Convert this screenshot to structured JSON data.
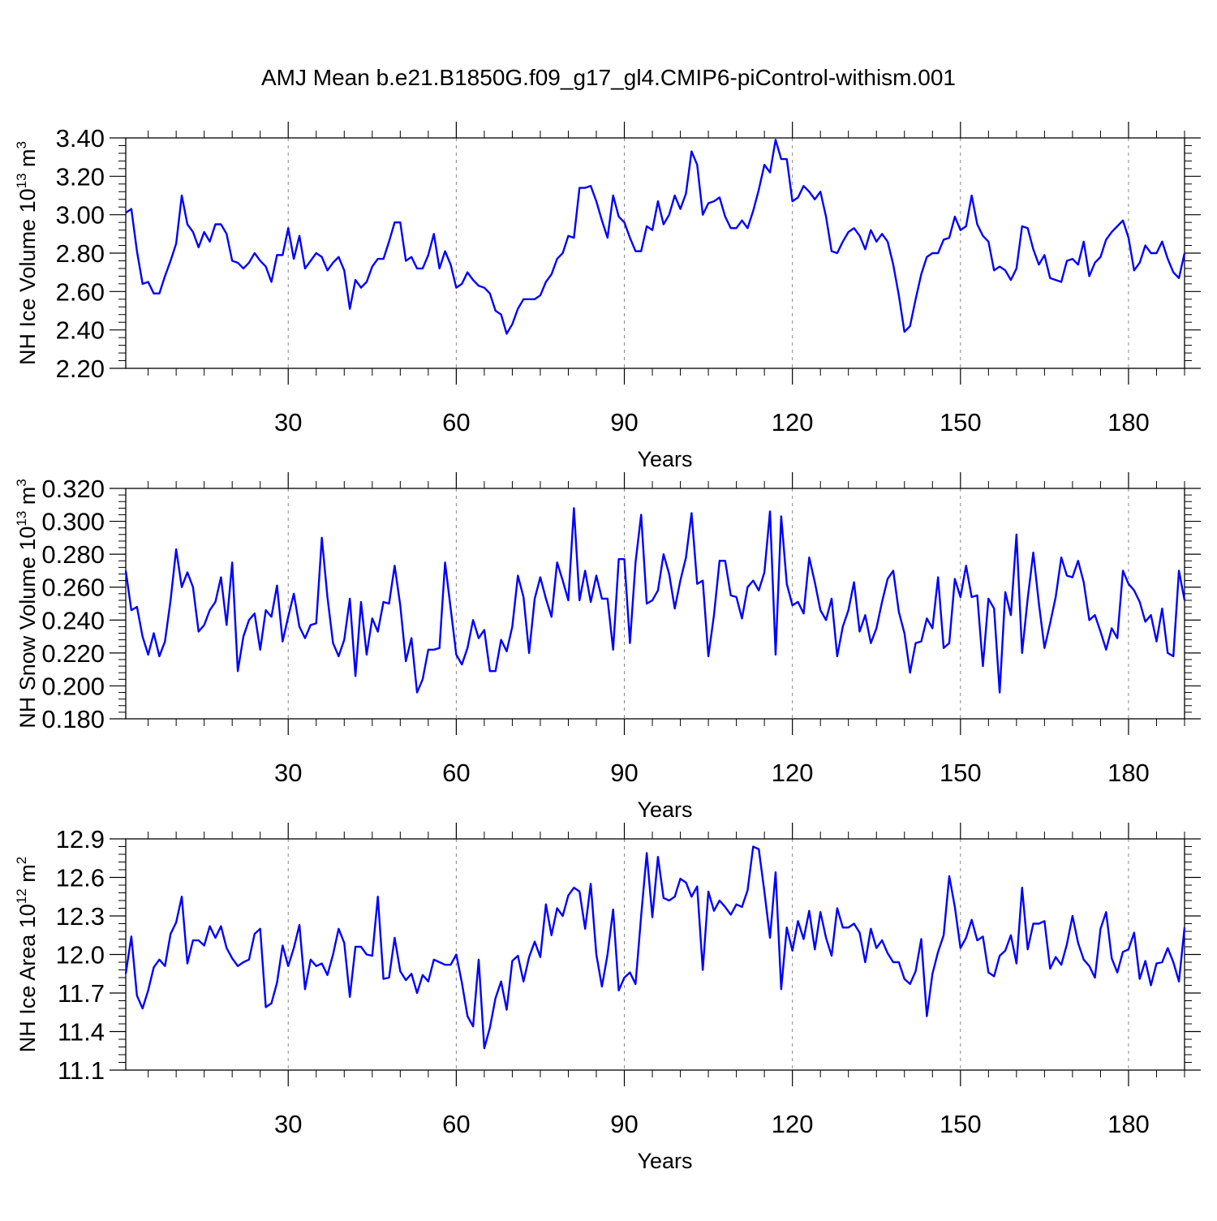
{
  "figure_title": "AMJ Mean b.e21.B1850G.f09_g17_gl4.CMIP6-piControl-withism.001",
  "line_color": "#0000ff",
  "chart_data": [
    {
      "type": "line",
      "xlabel": "Years",
      "ylabel_base": "NH Ice Volume 10",
      "ylabel_exp": "13",
      "ylabel_unit": " m",
      "ylabel_unit_exp": "3",
      "xlim": [
        1,
        190
      ],
      "ylim": [
        2.2,
        3.4
      ],
      "x_ticks": [
        "30",
        "60",
        "90",
        "120",
        "150",
        "180"
      ],
      "y_ticks": [
        "2.20",
        "2.40",
        "2.60",
        "2.80",
        "3.00",
        "3.20",
        "3.40"
      ],
      "series": [
        {
          "values": [
            3.01,
            3.03,
            2.81,
            2.64,
            2.65,
            2.59,
            2.59,
            2.68,
            2.76,
            2.85,
            3.1,
            2.95,
            2.91,
            2.83,
            2.91,
            2.86,
            2.95,
            2.95,
            2.9,
            2.76,
            2.75,
            2.72,
            2.75,
            2.8,
            2.76,
            2.73,
            2.65,
            2.79,
            2.79,
            2.93,
            2.77,
            2.89,
            2.72,
            2.76,
            2.8,
            2.78,
            2.71,
            2.75,
            2.78,
            2.71,
            2.51,
            2.66,
            2.62,
            2.65,
            2.73,
            2.77,
            2.77,
            2.86,
            2.96,
            2.96,
            2.76,
            2.78,
            2.72,
            2.72,
            2.79,
            2.9,
            2.72,
            2.81,
            2.74,
            2.62,
            2.64,
            2.7,
            2.66,
            2.63,
            2.62,
            2.59,
            2.5,
            2.48,
            2.38,
            2.43,
            2.51,
            2.56,
            2.56,
            2.56,
            2.58,
            2.65,
            2.69,
            2.77,
            2.8,
            2.89,
            2.88,
            3.14,
            3.14,
            3.15,
            3.07,
            2.97,
            2.88,
            3.1,
            2.99,
            2.96,
            2.88,
            2.81,
            2.81,
            2.94,
            2.92,
            3.07,
            2.95,
            3.0,
            3.1,
            3.03,
            3.11,
            3.33,
            3.26,
            3.0,
            3.06,
            3.07,
            3.09,
            2.99,
            2.93,
            2.93,
            2.97,
            2.93,
            3.02,
            3.13,
            3.26,
            3.22,
            3.39,
            3.29,
            3.29,
            3.07,
            3.09,
            3.15,
            3.12,
            3.08,
            3.12,
            2.99,
            2.81,
            2.8,
            2.86,
            2.91,
            2.93,
            2.89,
            2.82,
            2.92,
            2.86,
            2.9,
            2.86,
            2.74,
            2.58,
            2.39,
            2.42,
            2.56,
            2.69,
            2.78,
            2.8,
            2.8,
            2.87,
            2.88,
            2.99,
            2.92,
            2.94,
            3.1,
            2.95,
            2.89,
            2.86,
            2.71,
            2.73,
            2.71,
            2.66,
            2.72,
            2.94,
            2.93,
            2.82,
            2.74,
            2.79,
            2.67,
            2.66,
            2.65,
            2.76,
            2.77,
            2.74,
            2.86,
            2.68,
            2.75,
            2.78,
            2.87,
            2.91,
            2.94,
            2.97,
            2.88,
            2.71,
            2.75,
            2.84,
            2.8,
            2.8,
            2.86,
            2.77,
            2.7,
            2.67,
            2.8
          ]
        }
      ]
    },
    {
      "type": "line",
      "xlabel": "Years",
      "ylabel_base": "NH Snow Volume 10",
      "ylabel_exp": "13",
      "ylabel_unit": " m",
      "ylabel_unit_exp": "3",
      "xlim": [
        1,
        190
      ],
      "ylim": [
        0.18,
        0.32
      ],
      "x_ticks": [
        "30",
        "60",
        "90",
        "120",
        "150",
        "180"
      ],
      "y_ticks": [
        "0.180",
        "0.200",
        "0.220",
        "0.240",
        "0.260",
        "0.280",
        "0.300",
        "0.320"
      ],
      "series": [
        {
          "values": [
            0.27,
            0.246,
            0.248,
            0.23,
            0.219,
            0.232,
            0.218,
            0.227,
            0.252,
            0.283,
            0.26,
            0.269,
            0.26,
            0.233,
            0.237,
            0.246,
            0.251,
            0.266,
            0.237,
            0.275,
            0.209,
            0.23,
            0.24,
            0.244,
            0.222,
            0.246,
            0.242,
            0.261,
            0.227,
            0.242,
            0.256,
            0.236,
            0.229,
            0.237,
            0.238,
            0.29,
            0.254,
            0.226,
            0.218,
            0.228,
            0.253,
            0.206,
            0.251,
            0.219,
            0.241,
            0.233,
            0.251,
            0.25,
            0.273,
            0.249,
            0.215,
            0.229,
            0.196,
            0.204,
            0.222,
            0.222,
            0.223,
            0.275,
            0.247,
            0.219,
            0.213,
            0.223,
            0.24,
            0.229,
            0.234,
            0.209,
            0.209,
            0.228,
            0.221,
            0.236,
            0.267,
            0.254,
            0.22,
            0.253,
            0.266,
            0.253,
            0.242,
            0.275,
            0.264,
            0.252,
            0.308,
            0.252,
            0.27,
            0.251,
            0.267,
            0.253,
            0.253,
            0.222,
            0.277,
            0.277,
            0.226,
            0.275,
            0.304,
            0.25,
            0.252,
            0.258,
            0.28,
            0.268,
            0.247,
            0.264,
            0.278,
            0.305,
            0.262,
            0.264,
            0.218,
            0.243,
            0.276,
            0.276,
            0.255,
            0.254,
            0.241,
            0.26,
            0.264,
            0.258,
            0.269,
            0.306,
            0.219,
            0.303,
            0.262,
            0.249,
            0.251,
            0.244,
            0.278,
            0.263,
            0.246,
            0.24,
            0.253,
            0.218,
            0.236,
            0.246,
            0.263,
            0.233,
            0.243,
            0.226,
            0.235,
            0.251,
            0.265,
            0.27,
            0.245,
            0.232,
            0.208,
            0.226,
            0.227,
            0.241,
            0.235,
            0.266,
            0.223,
            0.226,
            0.265,
            0.254,
            0.273,
            0.254,
            0.255,
            0.212,
            0.253,
            0.247,
            0.196,
            0.257,
            0.243,
            0.292,
            0.22,
            0.253,
            0.281,
            0.25,
            0.223,
            0.238,
            0.254,
            0.278,
            0.267,
            0.266,
            0.276,
            0.263,
            0.24,
            0.243,
            0.233,
            0.222,
            0.235,
            0.229,
            0.27,
            0.262,
            0.258,
            0.251,
            0.239,
            0.243,
            0.227,
            0.247,
            0.22,
            0.218,
            0.27,
            0.252
          ]
        }
      ]
    },
    {
      "type": "line",
      "xlabel": "Years",
      "ylabel_base": "NH Ice Area 10",
      "ylabel_exp": "12",
      "ylabel_unit": " m",
      "ylabel_unit_exp": "2",
      "xlim": [
        1,
        190
      ],
      "ylim": [
        11.1,
        12.9
      ],
      "x_ticks": [
        "30",
        "60",
        "90",
        "120",
        "150",
        "180"
      ],
      "y_ticks": [
        "11.1",
        "11.4",
        "11.7",
        "12.0",
        "12.3",
        "12.6",
        "12.9"
      ],
      "series": [
        {
          "values": [
            11.85,
            12.14,
            11.68,
            11.58,
            11.72,
            11.9,
            11.96,
            11.91,
            12.16,
            12.25,
            12.45,
            11.93,
            12.11,
            12.11,
            12.07,
            12.22,
            12.13,
            12.22,
            12.05,
            11.97,
            11.91,
            11.94,
            11.96,
            12.16,
            12.2,
            11.59,
            11.62,
            11.78,
            12.07,
            11.91,
            12.05,
            12.23,
            11.73,
            11.96,
            11.91,
            11.93,
            11.84,
            12.0,
            12.2,
            12.09,
            11.67,
            12.06,
            12.06,
            12.0,
            11.99,
            12.45,
            11.81,
            11.82,
            12.13,
            11.87,
            11.8,
            11.85,
            11.7,
            11.84,
            11.79,
            11.96,
            11.94,
            11.92,
            11.92,
            12.0,
            11.78,
            11.52,
            11.44,
            11.96,
            11.27,
            11.43,
            11.66,
            11.79,
            11.57,
            11.95,
            11.99,
            11.79,
            11.98,
            12.1,
            11.98,
            12.39,
            12.15,
            12.36,
            12.3,
            12.46,
            12.52,
            12.49,
            12.2,
            12.55,
            12.0,
            11.75,
            12.0,
            12.35,
            11.72,
            11.82,
            11.86,
            11.77,
            12.3,
            12.79,
            12.29,
            12.76,
            12.44,
            12.42,
            12.45,
            12.59,
            12.56,
            12.45,
            12.53,
            11.88,
            12.49,
            12.34,
            12.42,
            12.37,
            12.31,
            12.39,
            12.37,
            12.5,
            12.84,
            12.82,
            12.49,
            12.13,
            12.64,
            11.73,
            12.21,
            12.03,
            12.26,
            12.12,
            12.34,
            12.04,
            12.33,
            12.13,
            11.99,
            12.36,
            12.21,
            12.21,
            12.24,
            12.17,
            11.94,
            12.2,
            12.05,
            12.11,
            12.01,
            11.94,
            11.94,
            11.81,
            11.77,
            11.87,
            12.12,
            11.52,
            11.85,
            12.02,
            12.15,
            12.61,
            12.37,
            12.05,
            12.13,
            12.27,
            12.11,
            12.14,
            11.86,
            11.83,
            11.99,
            12.03,
            12.15,
            11.93,
            12.52,
            12.04,
            12.24,
            12.24,
            12.26,
            11.89,
            11.98,
            11.92,
            12.08,
            12.3,
            12.09,
            11.96,
            11.91,
            11.82,
            12.2,
            12.33,
            11.97,
            11.86,
            12.02,
            12.04,
            12.17,
            11.81,
            11.95,
            11.76,
            11.93,
            11.94,
            12.05,
            11.94,
            11.79,
            12.21
          ]
        }
      ]
    }
  ]
}
